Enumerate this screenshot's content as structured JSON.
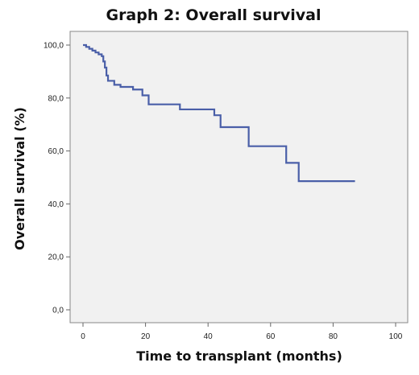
{
  "chart_data": {
    "type": "line",
    "title": "Graph 2: Overall survival",
    "xlabel": "Time to transplant (months)",
    "ylabel": "Overall survival (%)",
    "xlim": [
      0,
      100
    ],
    "ylim": [
      0,
      100
    ],
    "x_ticks": [
      0,
      20,
      40,
      60,
      80,
      100
    ],
    "y_ticks": [
      0,
      20,
      40,
      60,
      80,
      100
    ],
    "x_tick_labels": [
      "0",
      "20",
      "40",
      "60",
      "80",
      "100"
    ],
    "y_tick_labels": [
      "0,0",
      "20,0",
      "40,0",
      "60,0",
      "80,0",
      "100,0"
    ],
    "grid": false,
    "step": true,
    "series": [
      {
        "color": "#4a5fa8",
        "points": [
          [
            0,
            100
          ],
          [
            1,
            99.3
          ],
          [
            2,
            98.6
          ],
          [
            3,
            97.9
          ],
          [
            4,
            97.2
          ],
          [
            5,
            96.5
          ],
          [
            6,
            95.8
          ],
          [
            6.5,
            93.8
          ],
          [
            7,
            91.5
          ],
          [
            7.5,
            88.5
          ],
          [
            8,
            86.5
          ],
          [
            10,
            85.0
          ],
          [
            12,
            84.2
          ],
          [
            16,
            83.2
          ],
          [
            19,
            81.0
          ],
          [
            21,
            77.6
          ],
          [
            31,
            75.7
          ],
          [
            42,
            73.5
          ],
          [
            44,
            69.0
          ],
          [
            53,
            61.8
          ],
          [
            65,
            55.5
          ],
          [
            69,
            48.6
          ],
          [
            87,
            48.6
          ]
        ]
      }
    ]
  },
  "colors": {
    "plot_background": "#f1f1f1",
    "frame": "#888888",
    "line": "#4a5fa8"
  }
}
